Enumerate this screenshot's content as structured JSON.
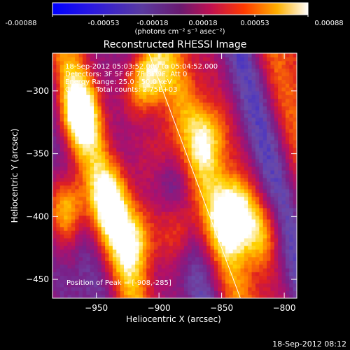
{
  "colorbar": {
    "tick_labels": [
      "-0.00088",
      "-0.00053",
      "-0.00018",
      "0.00018",
      "0.00053",
      "0.00088"
    ],
    "unit": "(photons cm⁻² s⁻¹ asec⁻²)"
  },
  "header": {
    "title": "Reconstructed RHESSI Image"
  },
  "info": {
    "time": "18-Sep-2012 05:03:52.000 to 05:04:52.000",
    "detectors": "Detectors: 3F 5F 6F 7F 8F 9F, Att 0",
    "energy": "Energy Range: 25.0 - 50.0 keV",
    "clean": "Clean     Total counts: 2.75E+03",
    "peak": "Position of Peak = [-908,-285]"
  },
  "footer": {
    "timestamp": "18-Sep-2012 08:12"
  },
  "colors": {
    "background": "#000000",
    "text": "#ffffff",
    "colormap": [
      "#0000ff",
      "#3a2ad0",
      "#6a4aa8",
      "#7a1f88",
      "#b0106a",
      "#e02020",
      "#ff7a00",
      "#ffd000",
      "#ffffff"
    ]
  },
  "chart_data": {
    "type": "heatmap",
    "title": "Reconstructed RHESSI Image",
    "xlabel": "Heliocentric X (arcsec)",
    "ylabel": "Heliocentric Y (arcsec)",
    "xlim": [
      -985,
      -790
    ],
    "ylim": [
      -465,
      -270
    ],
    "x_ticks": [
      -950,
      -900,
      -850,
      -800
    ],
    "y_ticks": [
      -300,
      -350,
      -400,
      -450
    ],
    "colorbar_range": [
      -0.00088,
      0.00088
    ],
    "peak_position": [
      -908,
      -285
    ],
    "limb_line": [
      [
        -910,
        -265
      ],
      [
        -835,
        -465
      ]
    ],
    "hot_spots": [
      {
        "x": -912,
        "y": -292,
        "value": 0.00088
      },
      {
        "x": -965,
        "y": -320,
        "value": 0.0006
      },
      {
        "x": -975,
        "y": -395,
        "value": 0.00065
      },
      {
        "x": -940,
        "y": -390,
        "value": 0.0005
      },
      {
        "x": -920,
        "y": -420,
        "value": 0.0005
      },
      {
        "x": -885,
        "y": -410,
        "value": 0.00045
      },
      {
        "x": -862,
        "y": -340,
        "value": 0.0004
      },
      {
        "x": -842,
        "y": -400,
        "value": 0.00075
      },
      {
        "x": -820,
        "y": -415,
        "value": 0.0004
      },
      {
        "x": -900,
        "y": -345,
        "value": 0.0004
      }
    ]
  }
}
